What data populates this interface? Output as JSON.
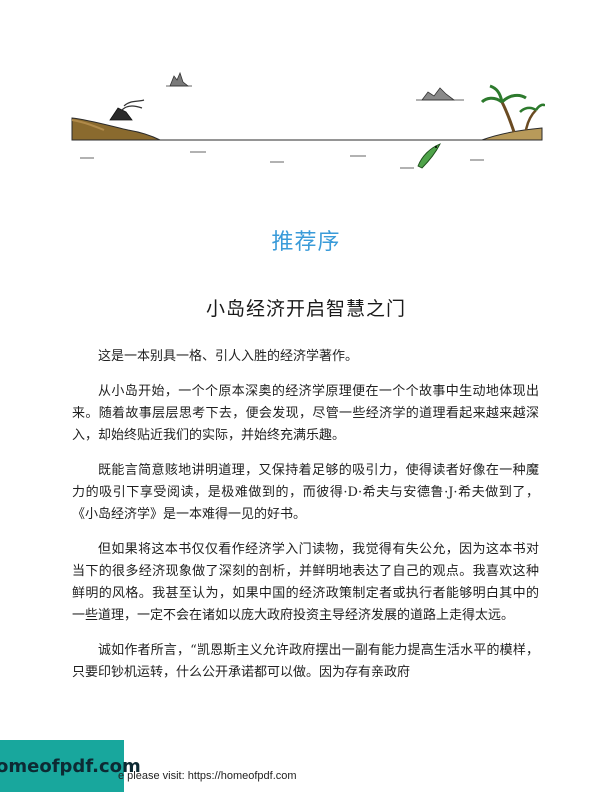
{
  "header": {
    "section_label": "推荐序",
    "article_title": "小岛经济开启智慧之门"
  },
  "paragraphs": [
    "这是一本别具一格、引人入胜的经济学著作。",
    "从小岛开始，一个个原本深奥的经济学原理便在一个个故事中生动地体现出来。随着故事层层思考下去，便会发现，尽管一些经济学的道理看起来越来越深入，却始终贴近我们的实际，并始终充满乐趣。",
    "既能言简意赅地讲明道理，又保持着足够的吸引力，使得读者好像在一种魔力的吸引下享受阅读，是极难做到的，而彼得·D·希夫与安德鲁·J·希夫做到了，《小岛经济学》是一本难得一见的好书。",
    "但如果将这本书仅仅看作经济学入门读物，我觉得有失公允，因为这本书对当下的很多经济现象做了深刻的剖析，并鲜明地表达了自己的观点。我喜欢这种鲜明的风格。我甚至认为，如果中国的经济政策制定者或执行者能够明白其中的一些道理，一定不会在诸如以庞大政府投资主导经济发展的道路上走得太远。",
    "诚如作者所言，“凯恩斯主义允许政府摆出一副有能力提高生活水平的模样，只要印钞机运转，什么公开承诺都可以做。因为存有亲政府"
  ],
  "watermark": {
    "logo_text": "homeofpdf.com",
    "footer_note": "e please visit: https://homeofpdf.com"
  },
  "colors": {
    "section_label": "#3a9bd9",
    "watermark_bg": "#18a79d",
    "text": "#1f1f1f"
  }
}
